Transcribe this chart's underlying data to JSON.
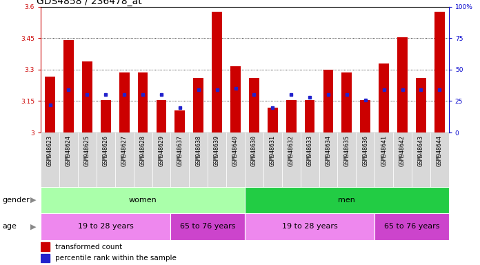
{
  "title": "GDS4858 / 236478_at",
  "samples": [
    "GSM948623",
    "GSM948624",
    "GSM948625",
    "GSM948626",
    "GSM948627",
    "GSM948628",
    "GSM948629",
    "GSM948637",
    "GSM948638",
    "GSM948639",
    "GSM948640",
    "GSM948630",
    "GSM948631",
    "GSM948632",
    "GSM948633",
    "GSM948634",
    "GSM948635",
    "GSM948636",
    "GSM948641",
    "GSM948642",
    "GSM948643",
    "GSM948644"
  ],
  "transformed_count": [
    3.265,
    3.44,
    3.34,
    3.155,
    3.285,
    3.285,
    3.155,
    3.105,
    3.26,
    3.575,
    3.315,
    3.26,
    3.12,
    3.155,
    3.155,
    3.3,
    3.285,
    3.155,
    3.33,
    3.455,
    3.26,
    3.575
  ],
  "percentile_rank": [
    22,
    34,
    30,
    30,
    30,
    30,
    30,
    20,
    34,
    34,
    35,
    30,
    20,
    30,
    28,
    30,
    30,
    26,
    34,
    34,
    34,
    34
  ],
  "ylim": [
    3.0,
    3.6
  ],
  "yticks": [
    3.0,
    3.15,
    3.3,
    3.45,
    3.6
  ],
  "ytick_labels": [
    "3",
    "3.15",
    "3.3",
    "3.45",
    "3.6"
  ],
  "right_yticks": [
    0,
    25,
    50,
    75,
    100
  ],
  "right_ytick_labels": [
    "0",
    "25",
    "50",
    "75",
    "100%"
  ],
  "bar_color": "#cc0000",
  "dot_color": "#2222cc",
  "bar_width": 0.55,
  "base_value": 3.0,
  "gender_groups": [
    {
      "label": "women",
      "start": 0,
      "end": 11,
      "color": "#aaffaa"
    },
    {
      "label": "men",
      "start": 11,
      "end": 22,
      "color": "#22cc44"
    }
  ],
  "age_groups": [
    {
      "label": "19 to 28 years",
      "start": 0,
      "end": 7,
      "color": "#ee88ee"
    },
    {
      "label": "65 to 76 years",
      "start": 7,
      "end": 11,
      "color": "#cc44cc"
    },
    {
      "label": "19 to 28 years",
      "start": 11,
      "end": 18,
      "color": "#ee88ee"
    },
    {
      "label": "65 to 76 years",
      "start": 18,
      "end": 22,
      "color": "#cc44cc"
    }
  ],
  "legend_bar_label": "transformed count",
  "legend_dot_label": "percentile rank within the sample",
  "background_color": "#ffffff",
  "tick_label_bg": "#d8d8d8",
  "title_fontsize": 10,
  "tick_fontsize": 6.5,
  "xtick_fontsize": 6,
  "label_fontsize": 8,
  "row_label_fontsize": 8
}
